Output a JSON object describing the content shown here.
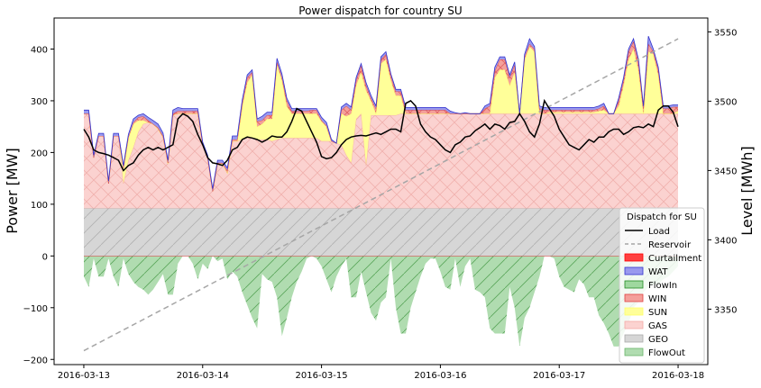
{
  "chart_data": {
    "type": "area",
    "title": "Power dispatch for country SU",
    "ylabel": "Power [MW]",
    "y2label": "Level [MWh]",
    "ylim": [
      -210,
      460
    ],
    "y2lim": [
      3310,
      3560
    ],
    "yticks": [
      -200,
      -100,
      0,
      100,
      200,
      300,
      400
    ],
    "y2ticks": [
      3350,
      3400,
      3450,
      3500,
      3550
    ],
    "xlim_hours": [
      -6,
      126
    ],
    "xticks": [
      {
        "label": "2016-03-13",
        "hour": 0
      },
      {
        "label": "2016-03-14",
        "hour": 24
      },
      {
        "label": "2016-03-15",
        "hour": 48
      },
      {
        "label": "2016-03-16",
        "hour": 72
      },
      {
        "label": "2016-03-17",
        "hour": 96
      },
      {
        "label": "2016-03-18",
        "hour": 120
      }
    ],
    "x_start": "2016-03-13",
    "x_step_hours": 2,
    "grid": false,
    "legend": {
      "title": "Dispatch for SU",
      "placement": "lower right",
      "entries": [
        {
          "name": "Load",
          "kind": "line",
          "color": "#000000"
        },
        {
          "name": "Reservoir",
          "kind": "dashed",
          "color": "#a6a6a6"
        },
        {
          "name": "Curtailment",
          "kind": "patch",
          "color": "#ff4040",
          "edge": "#ff0000",
          "hatch": ""
        },
        {
          "name": "WAT",
          "kind": "patch",
          "color": "#9999ee",
          "edge": "#3333cc",
          "hatch": "cross"
        },
        {
          "name": "FlowIn",
          "kind": "patch",
          "color": "#9fd89f",
          "edge": "#228b22",
          "hatch": "diag"
        },
        {
          "name": "WIN",
          "kind": "patch",
          "color": "#f4a09a",
          "edge": "#e04040",
          "hatch": "cross"
        },
        {
          "name": "SUN",
          "kind": "patch",
          "color": "#ffff99",
          "edge": "#ffff66",
          "hatch": "none"
        },
        {
          "name": "GAS",
          "kind": "patch",
          "color": "#fbd2d0",
          "edge": "#f4a9a6",
          "hatch": "cross"
        },
        {
          "name": "GEO",
          "kind": "patch",
          "color": "#d6d6d6",
          "edge": "#aaaaaa",
          "hatch": "diag"
        },
        {
          "name": "FlowOut",
          "kind": "patch",
          "color": "#b0dcb0",
          "edge": "#6ab56a",
          "hatch": "none"
        }
      ]
    },
    "series": {
      "GEO": [
        92,
        92,
        92,
        92,
        92,
        92,
        92,
        92,
        92,
        92,
        92,
        92,
        92,
        92,
        92,
        92,
        92,
        92,
        92,
        92,
        92,
        92,
        92,
        92,
        92,
        92,
        92,
        92,
        92,
        92,
        92,
        92,
        92,
        92,
        92,
        92,
        92,
        92,
        92,
        92,
        92,
        92,
        92,
        92,
        92,
        92,
        92,
        92,
        92,
        92,
        92,
        92,
        92,
        92,
        92,
        92,
        92,
        92,
        92,
        92,
        92,
        92,
        92,
        92,
        92,
        92,
        92,
        92,
        92,
        92,
        92,
        92,
        92,
        92,
        92,
        92,
        92,
        92,
        92,
        92,
        92,
        92,
        92,
        92,
        92,
        92,
        92,
        92,
        92,
        92,
        92,
        92,
        92,
        92,
        92,
        92,
        92,
        92,
        92,
        92,
        92,
        92,
        92,
        92,
        92,
        92,
        92,
        92,
        92,
        92,
        92,
        92,
        92,
        92,
        92,
        92,
        92,
        92,
        92,
        92,
        92,
        92,
        92,
        92,
        92,
        92,
        92,
        92,
        92,
        92,
        92,
        92,
        92,
        92,
        92,
        92,
        92,
        92,
        92,
        92,
        92,
        92,
        92,
        92,
        92,
        92,
        92,
        92,
        92,
        92,
        92,
        92,
        92,
        92,
        92,
        92,
        92,
        92,
        92,
        92,
        92
      ],
      "GAS": [
        183,
        183,
        183,
        183,
        183,
        183,
        183,
        183,
        183,
        183,
        183,
        183,
        183,
        183,
        183,
        183,
        183,
        183,
        183,
        183,
        183,
        183,
        183,
        183,
        183,
        183,
        183,
        183,
        183,
        183,
        183,
        183,
        183,
        183,
        183,
        183,
        183,
        183,
        183,
        183,
        183,
        183,
        183,
        183,
        183,
        183,
        183,
        183,
        183,
        183,
        183,
        183,
        183,
        183,
        183,
        183,
        183,
        183,
        183,
        183,
        183,
        183,
        183,
        183,
        183,
        183,
        183,
        183,
        183,
        183,
        183,
        183,
        183,
        183,
        183,
        183,
        183,
        183,
        183,
        183,
        183,
        183,
        183,
        183,
        183,
        183,
        183,
        183,
        183,
        183,
        183,
        183,
        183,
        183,
        183,
        183,
        183,
        183,
        183,
        183,
        183,
        183,
        183,
        183,
        183,
        183,
        183,
        183,
        183,
        183,
        183,
        183,
        183,
        183,
        183,
        183,
        183,
        183,
        183,
        183,
        183,
        183,
        183,
        183,
        183,
        183,
        183,
        183,
        183,
        183,
        183,
        183,
        183,
        183,
        183,
        183,
        183,
        183,
        183,
        183,
        183,
        183,
        183,
        183,
        183,
        183,
        183,
        183,
        183,
        183,
        183,
        183,
        183,
        183,
        183,
        183,
        183,
        183,
        183,
        183,
        183
      ],
      "stack_keys": [
        "GEO",
        "GAS",
        "SUN",
        "WIN",
        "FlowIn",
        "WAT",
        "Curtailment"
      ],
      "cum_gas": [
        275,
        275,
        190,
        232,
        232,
        140,
        232,
        232,
        140,
        185,
        210,
        245,
        260,
        262,
        258,
        250,
        235,
        178,
        275,
        275,
        275,
        275,
        275,
        275,
        215,
        190,
        130,
        180,
        180,
        165,
        225,
        225,
        230,
        230,
        230,
        230,
        230,
        230,
        230,
        230,
        230,
        230,
        230,
        230,
        230,
        230,
        230,
        230,
        230,
        230,
        230,
        230,
        220,
        195,
        175,
        265,
        275,
        175,
        275,
        275,
        275,
        275,
        275,
        275,
        275,
        275,
        275,
        275,
        275,
        275,
        275,
        275,
        275,
        275,
        275,
        275,
        275,
        275,
        275,
        275,
        275,
        275,
        275,
        275,
        275,
        275,
        275,
        275,
        275,
        275,
        275,
        275,
        275,
        275,
        275,
        275,
        275,
        275,
        275,
        275,
        275,
        275,
        275,
        275,
        275,
        275,
        275,
        275,
        275,
        275,
        275,
        275,
        275,
        275,
        275,
        275,
        275,
        275,
        275,
        275,
        275,
        275,
        275,
        275,
        275,
        275,
        275,
        275,
        275,
        275,
        275,
        275,
        275,
        275,
        275,
        275,
        275,
        275,
        275,
        275,
        275,
        275,
        275,
        275,
        275,
        275,
        275,
        275,
        275,
        275,
        275,
        275,
        275,
        275,
        275,
        275,
        275,
        275,
        275,
        275,
        275
      ]
    },
    "x_hours": [
      0,
      1,
      2,
      3,
      4,
      5,
      6,
      7,
      8,
      9,
      10,
      11,
      12,
      13,
      14,
      15,
      16,
      17,
      18,
      19,
      20,
      21,
      22,
      23,
      24,
      25,
      26,
      27,
      28,
      29,
      30,
      31,
      32,
      33,
      34,
      35,
      36,
      37,
      38,
      39,
      40,
      41,
      42,
      43,
      44,
      45,
      46,
      47,
      48,
      49,
      50,
      51,
      52,
      53,
      54,
      55,
      56,
      57,
      58,
      59,
      60,
      61,
      62,
      63,
      64,
      65,
      66,
      67,
      68,
      69,
      70,
      71,
      72,
      73,
      74,
      75,
      76,
      77,
      78,
      79,
      80,
      81,
      82,
      83,
      84,
      85,
      86,
      87,
      88,
      89,
      90,
      91,
      92,
      93,
      94,
      95,
      96,
      97,
      98,
      99,
      100,
      101,
      102,
      103,
      104,
      105,
      106,
      107,
      108,
      109,
      110,
      111,
      112,
      113,
      114,
      115,
      116,
      117,
      118,
      119,
      120
    ],
    "upper": {
      "gas_top": [
        275,
        275,
        190,
        232,
        232,
        140,
        232,
        232,
        140,
        185,
        210,
        240,
        255,
        258,
        255,
        245,
        230,
        178,
        272,
        275,
        275,
        275,
        275,
        275,
        215,
        190,
        125,
        178,
        178,
        160,
        222,
        222,
        225,
        228,
        228,
        225,
        225,
        225,
        222,
        225,
        228,
        228,
        228,
        228,
        228,
        228,
        228,
        228,
        222,
        222,
        222,
        218,
        215,
        195,
        180,
        265,
        275,
        175,
        272,
        272,
        272,
        272,
        272,
        272,
        275,
        275,
        275,
        275,
        275,
        275,
        275,
        275,
        275,
        275,
        275,
        275,
        275,
        275,
        275,
        275,
        275,
        275,
        275,
        275,
        275,
        275,
        275,
        275,
        275,
        275,
        275,
        275,
        275,
        275,
        275,
        275,
        275,
        275,
        275,
        275,
        275,
        275,
        275,
        275,
        275,
        275,
        275,
        275,
        275,
        275,
        275,
        275,
        275,
        275,
        275,
        275,
        275,
        275,
        275,
        275,
        275
      ],
      "sun_top": [
        275,
        275,
        190,
        232,
        232,
        140,
        232,
        232,
        170,
        230,
        255,
        262,
        262,
        255,
        250,
        240,
        230,
        178,
        272,
        275,
        275,
        275,
        275,
        275,
        215,
        190,
        125,
        178,
        178,
        160,
        222,
        222,
        290,
        335,
        350,
        250,
        255,
        265,
        265,
        370,
        340,
        290,
        275,
        275,
        275,
        275,
        275,
        275,
        260,
        250,
        215,
        175,
        275,
        270,
        275,
        330,
        355,
        320,
        300,
        275,
        372,
        380,
        340,
        310,
        310,
        275,
        275,
        275,
        275,
        275,
        275,
        275,
        275,
        275,
        270,
        268,
        260,
        265,
        225,
        250,
        250,
        275,
        275,
        345,
        360,
        360,
        330,
        355,
        245,
        380,
        405,
        395,
        275,
        275,
        278,
        278,
        278,
        278,
        278,
        278,
        278,
        278,
        278,
        278,
        280,
        282,
        240,
        260,
        290,
        330,
        380,
        400,
        360,
        275,
        395,
        390,
        350,
        275,
        275,
        275,
        280
      ],
      "win_top": [
        275,
        275,
        190,
        232,
        232,
        140,
        232,
        232,
        170,
        230,
        258,
        268,
        270,
        262,
        255,
        248,
        232,
        180,
        275,
        280,
        280,
        280,
        280,
        280,
        215,
        190,
        125,
        180,
        180,
        165,
        225,
        225,
        295,
        345,
        355,
        260,
        262,
        272,
        272,
        375,
        345,
        300,
        280,
        280,
        280,
        280,
        282,
        282,
        262,
        252,
        220,
        178,
        282,
        290,
        282,
        340,
        368,
        330,
        305,
        285,
        380,
        390,
        348,
        318,
        318,
        282,
        282,
        282,
        282,
        282,
        282,
        282,
        282,
        282,
        275,
        272,
        268,
        272,
        232,
        258,
        258,
        285,
        290,
        358,
        380,
        380,
        345,
        370,
        260,
        385,
        410,
        400,
        285,
        282,
        282,
        282,
        282,
        282,
        282,
        282,
        282,
        282,
        282,
        282,
        285,
        290,
        250,
        270,
        300,
        340,
        395,
        415,
        375,
        285,
        410,
        395,
        360,
        285,
        285,
        288,
        288
      ],
      "wat_top": [
        282,
        282,
        195,
        237,
        237,
        145,
        237,
        237,
        175,
        235,
        265,
        272,
        275,
        268,
        262,
        255,
        238,
        185,
        282,
        287,
        285,
        285,
        285,
        285,
        220,
        195,
        130,
        185,
        185,
        170,
        232,
        232,
        302,
        350,
        360,
        265,
        270,
        278,
        278,
        382,
        352,
        305,
        285,
        285,
        285,
        285,
        285,
        285,
        268,
        258,
        225,
        182,
        288,
        295,
        288,
        345,
        372,
        335,
        310,
        290,
        385,
        395,
        352,
        322,
        322,
        287,
        287,
        287,
        287,
        287,
        287,
        287,
        287,
        287,
        280,
        277,
        272,
        277,
        237,
        262,
        262,
        290,
        295,
        365,
        385,
        385,
        350,
        375,
        265,
        390,
        420,
        405,
        290,
        287,
        287,
        287,
        287,
        287,
        287,
        287,
        287,
        287,
        287,
        287,
        290,
        295,
        255,
        275,
        305,
        345,
        400,
        420,
        380,
        290,
        425,
        400,
        365,
        290,
        290,
        292,
        292
      ],
      "flowin_bottom_idx": [
        10,
        26,
        29,
        52,
        53
      ]
    },
    "lower": {
      "flowout": [
        -40,
        -60,
        -5,
        -40,
        -40,
        -5,
        -40,
        -60,
        -5,
        -35,
        -50,
        -60,
        -65,
        -75,
        -65,
        -50,
        -35,
        -75,
        -75,
        -15,
        0,
        0,
        -15,
        -45,
        -15,
        -25,
        0,
        -10,
        -5,
        -45,
        -30,
        -40,
        -70,
        -95,
        -120,
        -140,
        -35,
        -45,
        -50,
        -80,
        -155,
        -120,
        -80,
        -50,
        -30,
        -5,
        0,
        -5,
        -20,
        -45,
        -70,
        -40,
        -20,
        -5,
        -80,
        -80,
        -30,
        -70,
        -110,
        -125,
        -90,
        -80,
        -5,
        -100,
        -150,
        -150,
        -100,
        -70,
        -40,
        -15,
        -5,
        -5,
        -30,
        -60,
        -65,
        -5,
        -60,
        -20,
        -5,
        -65,
        -70,
        -80,
        -140,
        -150,
        -150,
        -150,
        -60,
        -100,
        -175,
        -120,
        -100,
        -70,
        -40,
        0,
        0,
        -5,
        -40,
        -60,
        -65,
        -70,
        -45,
        -55,
        -80,
        -80,
        -115,
        -130,
        -150,
        -175,
        -175,
        -150,
        -130,
        -100,
        -90,
        -70,
        -60,
        -55,
        -55,
        -45,
        -40,
        -30,
        -20
      ],
      "load": [
        245,
        230,
        205,
        200,
        198,
        195,
        190,
        185,
        165,
        175,
        180,
        195,
        205,
        210,
        205,
        210,
        205,
        210,
        215,
        265,
        275,
        270,
        260,
        235,
        215,
        190,
        180,
        178,
        175,
        185,
        205,
        210,
        225,
        230,
        228,
        225,
        220,
        225,
        232,
        230,
        230,
        240,
        260,
        285,
        280,
        260,
        240,
        220,
        192,
        188,
        190,
        200,
        215,
        225,
        230,
        232,
        233,
        232,
        235,
        238,
        235,
        240,
        245,
        245,
        240,
        295,
        300,
        290,
        255,
        240,
        230,
        225,
        215,
        205,
        200,
        215,
        220,
        230,
        232,
        242,
        248,
        255,
        245,
        255,
        252,
        245,
        258,
        260,
        275,
        260,
        240,
        230,
        255,
        300,
        285,
        270,
        245,
        230,
        215,
        210,
        205,
        215,
        225,
        220,
        230,
        230,
        240,
        245,
        245,
        235,
        240,
        248,
        250,
        248,
        255,
        250,
        282,
        290,
        290,
        278,
        250
      ],
      "reservoir_start": 3320,
      "reservoir_end": 3545
    }
  }
}
